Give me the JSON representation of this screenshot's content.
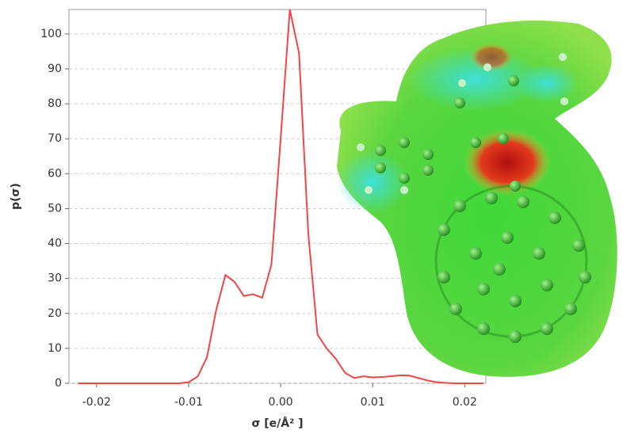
{
  "chart_data": {
    "type": "line",
    "x_label": "σ [e/Å² ]",
    "y_label": "p(σ)",
    "x": [
      -0.022,
      -0.021,
      -0.02,
      -0.019,
      -0.018,
      -0.017,
      -0.016,
      -0.015,
      -0.014,
      -0.013,
      -0.012,
      -0.011,
      -0.01,
      -0.009,
      -0.008,
      -0.007,
      -0.006,
      -0.005,
      -0.004,
      -0.003,
      -0.002,
      -0.001,
      0,
      0.001,
      0.002,
      0.003,
      0.004,
      0.005,
      0.006,
      0.007,
      0.008,
      0.009,
      0.01,
      0.011,
      0.012,
      0.013,
      0.014,
      0.015,
      0.016,
      0.017,
      0.018,
      0.019,
      0.02,
      0.021,
      0.022
    ],
    "series": [
      {
        "color": "#f04646",
        "values": [
          0,
          0,
          0,
          0,
          0,
          0,
          0,
          0,
          0,
          0,
          0,
          0,
          0.3,
          2,
          7.5,
          21,
          31,
          29,
          25,
          25.5,
          24.5,
          34,
          70,
          107,
          94.5,
          43,
          14,
          10,
          7,
          3,
          1.5,
          2,
          1.7,
          1.8,
          2,
          2.3,
          2.2,
          1.5,
          0.8,
          0.3,
          0.1,
          0,
          0,
          0,
          0
        ]
      }
    ],
    "xlim": [
      -0.023,
      0.0223
    ],
    "ylim": [
      0,
      107
    ],
    "xticks": [
      -0.02,
      -0.01,
      {
        "value": 0,
        "label": "0.00"
      },
      0.01,
      0.02
    ],
    "yticks": [
      0,
      10,
      20,
      30,
      40,
      50,
      60,
      70,
      80,
      90,
      100
    ],
    "grid": true
  }
}
